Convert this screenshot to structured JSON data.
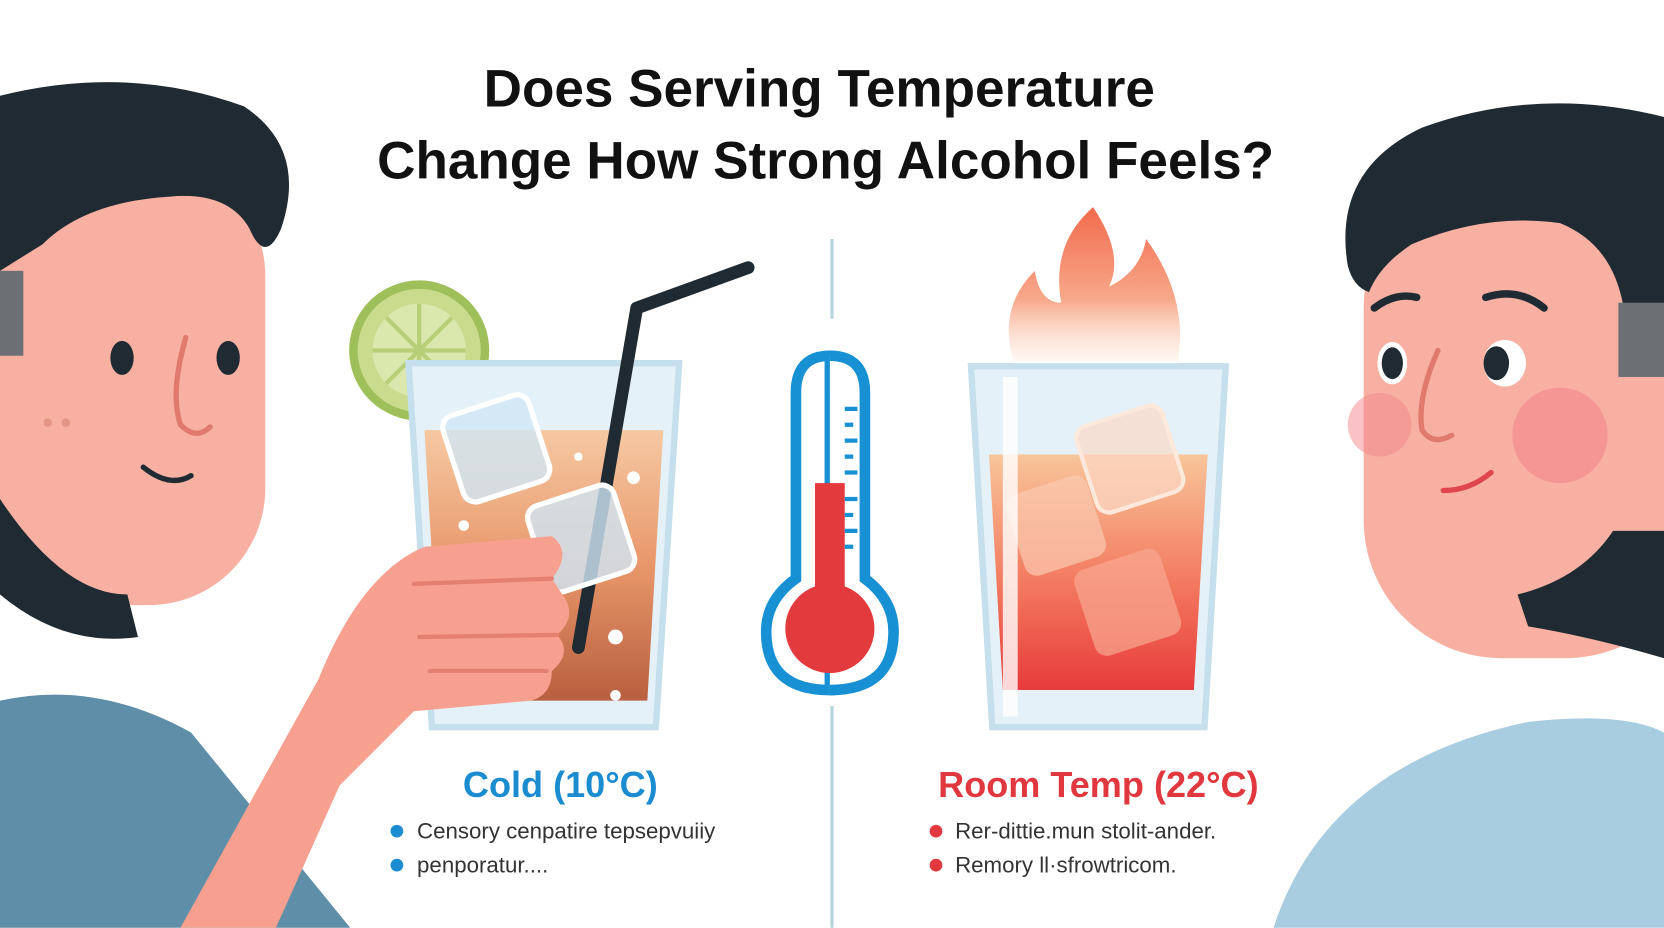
{
  "title": {
    "lines": [
      "Does Serving Temperature",
      "Change How Strong Alcohol Feels?"
    ]
  },
  "panels": [
    {
      "label": "Cold (10°C)",
      "bullets": [
        "Censory cenpatire tepsepvuiiy",
        "penporatur...."
      ]
    },
    {
      "label": "Room Temp (22°C)",
      "bullets": [
        "Rer-dittie.mun stolit-ander.",
        "Remory ll·sfrowtricom."
      ]
    }
  ]
}
